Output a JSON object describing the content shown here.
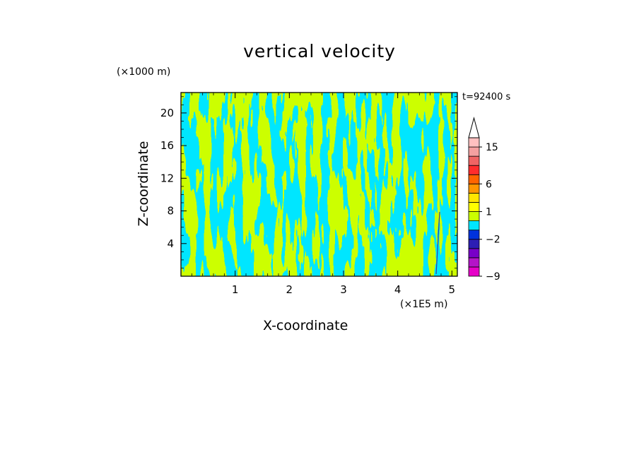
{
  "chart_data": {
    "type": "heatmap",
    "title": "vertical velocity",
    "xlabel": "X-coordinate",
    "ylabel": "Z-coordinate",
    "x_unit": "(×1E5 m)",
    "y_unit": "(×1000 m)",
    "time_label": "t=92400 s",
    "xlim": [
      0,
      5.1
    ],
    "ylim": [
      0,
      22.5
    ],
    "x_ticks": [
      "1",
      "2",
      "3",
      "4",
      "5"
    ],
    "x_tick_values": [
      1,
      2,
      3,
      4,
      5
    ],
    "y_ticks": [
      "4",
      "8",
      "12",
      "16",
      "20"
    ],
    "y_tick_values": [
      4,
      8,
      12,
      16,
      20
    ],
    "dominant_colors": {
      "positive_weak": "#ccff00",
      "negative_weak": "#00e6ff"
    },
    "colorbar": {
      "levels": [
        -9,
        -7,
        -5,
        -3,
        -2,
        -1,
        0,
        1,
        2,
        4,
        6,
        8,
        10,
        12,
        15,
        18
      ],
      "labels": [
        "15",
        "6",
        "1",
        "−2",
        "−9"
      ],
      "label_values": [
        15,
        6,
        1,
        -2,
        -9
      ],
      "colors": [
        "#e600c8",
        "#b414c8",
        "#7800c8",
        "#2d1eb4",
        "#0032dc",
        "#00e6ff",
        "#ccff00",
        "#ffff00",
        "#ffe600",
        "#ff9600",
        "#ff6400",
        "#ff2d2d",
        "#f06464",
        "#f5a0a0",
        "#ffc0c0"
      ],
      "extend": "max"
    }
  }
}
